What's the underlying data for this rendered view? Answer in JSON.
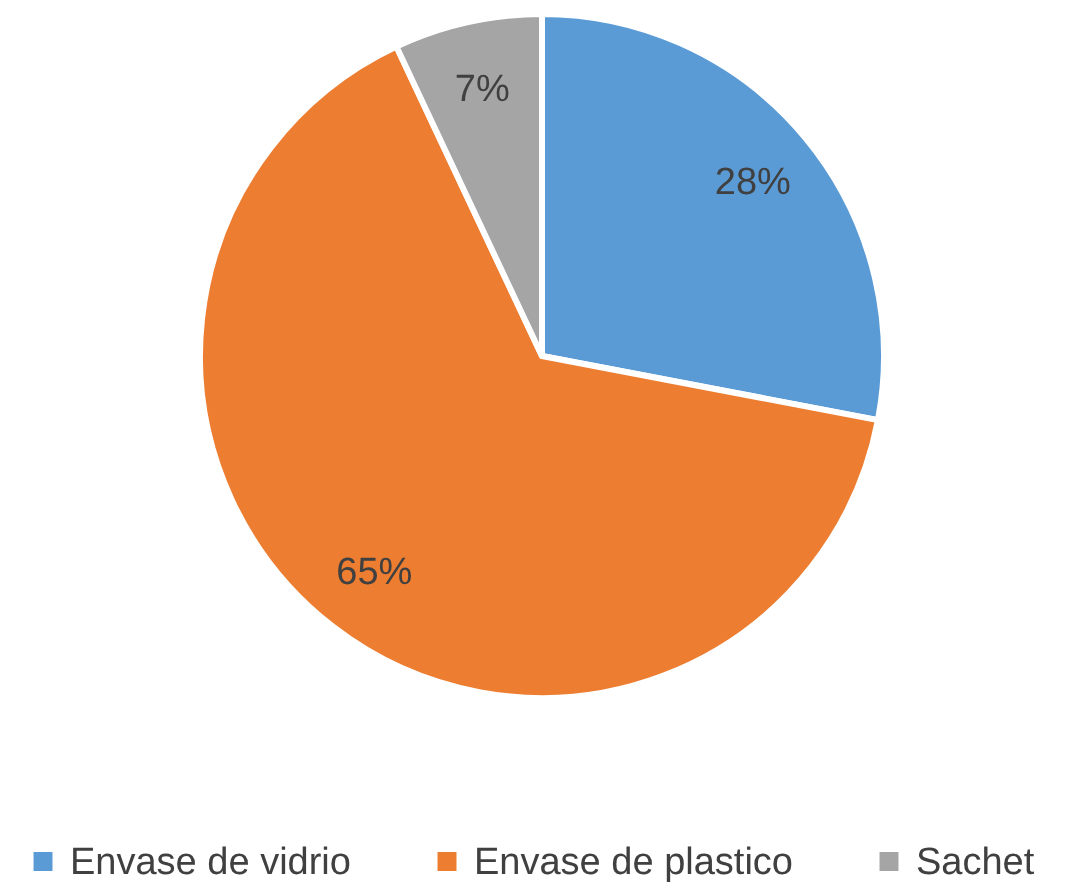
{
  "chart_data": {
    "type": "pie",
    "categories": [
      "Envase de vidrio",
      "Envase de plastico",
      "Sachet"
    ],
    "values": [
      28,
      65,
      7
    ],
    "colors": [
      "#5b9bd5",
      "#ed7d31",
      "#a5a5a5"
    ],
    "value_labels": [
      "28%",
      "65%",
      "7%"
    ],
    "legend": "bottom"
  }
}
